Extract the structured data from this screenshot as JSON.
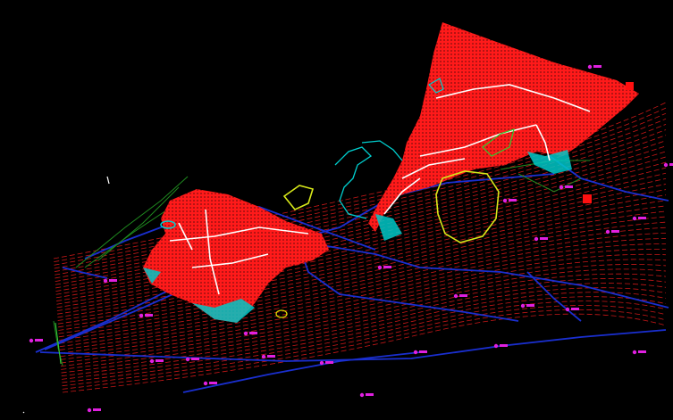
{
  "viewport": {
    "background": "#000000",
    "layers": [
      {
        "name": "contours",
        "color": "#d01818"
      },
      {
        "name": "buildings",
        "color": "#ff1010"
      },
      {
        "name": "roads",
        "color": "#1a2fd0"
      },
      {
        "name": "utilities",
        "color": "#1f7a1f"
      },
      {
        "name": "labels",
        "color": "#e020e0"
      },
      {
        "name": "water",
        "color": "#00d0d0"
      },
      {
        "name": "boundaries",
        "color": "#e0e000"
      },
      {
        "name": "annotations",
        "color": "#ffffff"
      }
    ]
  }
}
